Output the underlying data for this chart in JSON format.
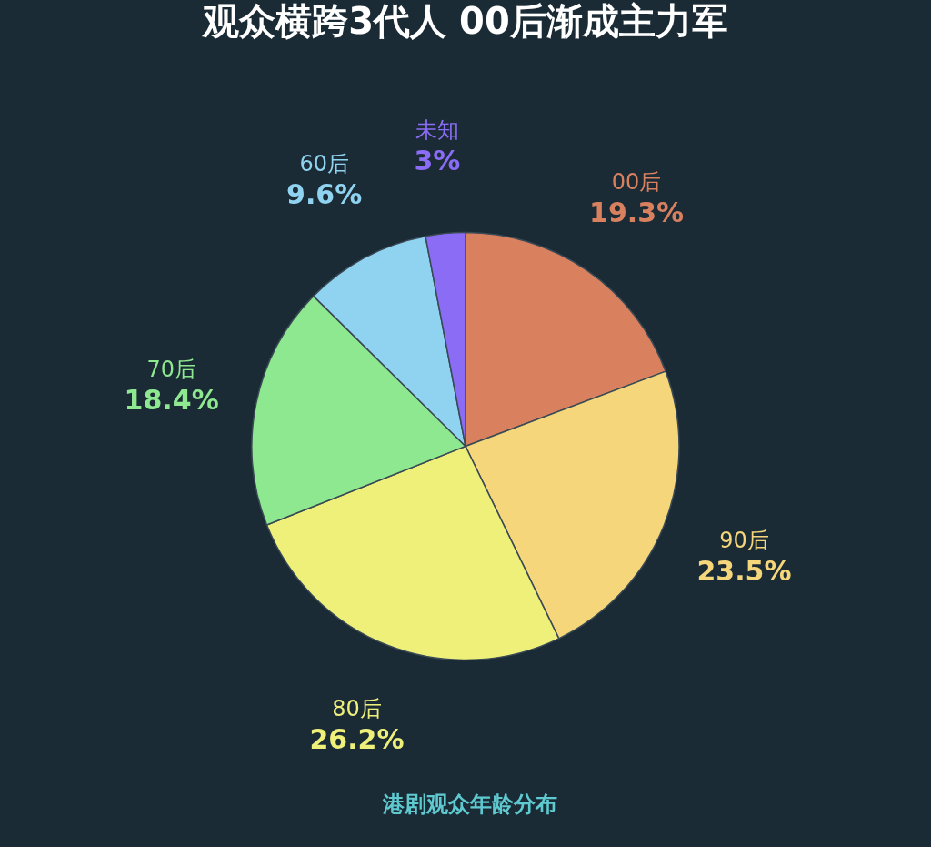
{
  "chart_data": {
    "type": "pie",
    "title": "观众横跨3代人  00后渐成主力军",
    "categories": [
      "00后",
      "90后",
      "80后",
      "70后",
      "60后",
      "未知"
    ],
    "values": [
      19.3,
      23.5,
      26.2,
      18.4,
      9.6,
      3
    ],
    "value_labels": [
      "19.3%",
      "23.5%",
      "26.2%",
      "18.4%",
      "9.6%",
      "3%"
    ],
    "colors": [
      "#d9805f",
      "#f5d67a",
      "#eef07a",
      "#8de88f",
      "#8fd3f0",
      "#8a6cf5"
    ],
    "annotations": [
      "港剧观众年龄分布"
    ],
    "legend": false
  }
}
